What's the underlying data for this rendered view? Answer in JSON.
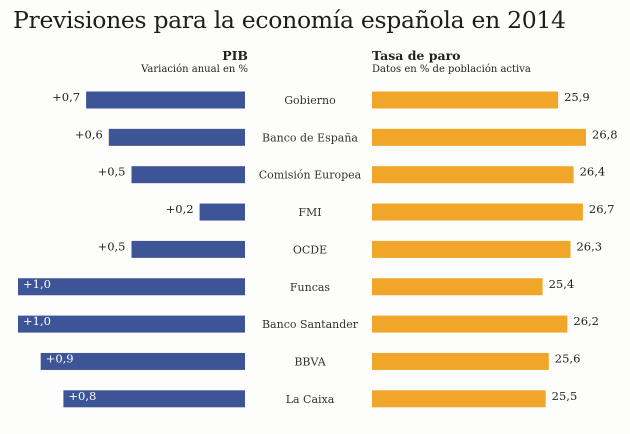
{
  "title": "Previsiones para la economía española en 2014",
  "colors": {
    "pib": "#3d5596",
    "paro": "#f2a629",
    "text": "#222222"
  },
  "chart_data": [
    {
      "type": "bar",
      "orientation": "horizontal",
      "direction": "leftward",
      "title": "PIB",
      "subtitle": "Variación anual en %",
      "categories": [
        "Gobierno",
        "Banco de España",
        "Comisión Europea",
        "FMI",
        "OCDE",
        "Funcas",
        "Banco Santander",
        "BBVA",
        "La Caixa"
      ],
      "values": [
        0.7,
        0.6,
        0.5,
        0.2,
        0.5,
        1.0,
        1.0,
        0.9,
        0.8
      ],
      "labels": [
        "+0,7",
        "+0,6",
        "+0,5",
        "+0,2",
        "+0,5",
        "+1,0",
        "+1,0",
        "+0,9",
        "+0,8"
      ],
      "xlim": [
        0,
        1.0
      ],
      "grid": false,
      "legend": "none"
    },
    {
      "type": "bar",
      "orientation": "horizontal",
      "direction": "rightward",
      "title": "Tasa de paro",
      "subtitle": "Datos en % de población activa",
      "categories": [
        "Gobierno",
        "Banco de España",
        "Comisión Europea",
        "FMI",
        "OCDE",
        "Funcas",
        "Banco Santander",
        "BBVA",
        "La Caixa"
      ],
      "values": [
        25.9,
        26.8,
        26.4,
        26.7,
        26.3,
        25.4,
        26.2,
        25.6,
        25.5
      ],
      "labels": [
        "25,9",
        "26,8",
        "26,4",
        "26,7",
        "26,3",
        "25,4",
        "26,2",
        "25,6",
        "25,5"
      ],
      "xlim": [
        19.9,
        26.8
      ],
      "grid": false,
      "legend": "none"
    }
  ]
}
